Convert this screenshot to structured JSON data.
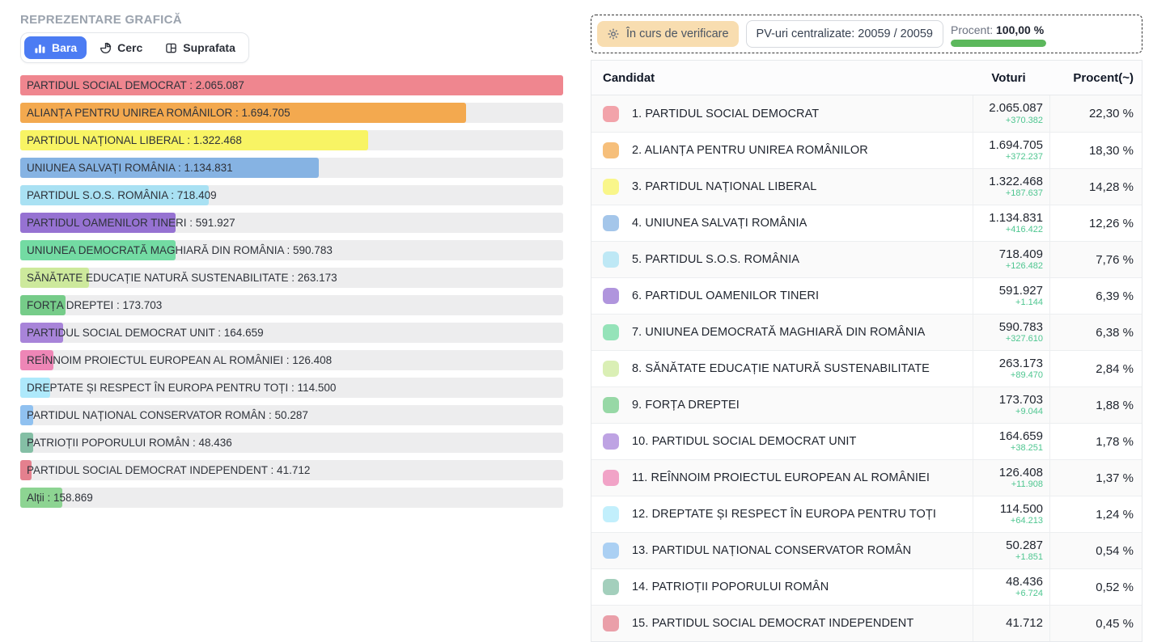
{
  "left_panel": {
    "title": "REPREZENTARE GRAFICĂ",
    "tabs": [
      {
        "label": "Bara",
        "icon": "bar-chart-icon",
        "active": true
      },
      {
        "label": "Cerc",
        "icon": "pie-chart-icon",
        "active": false
      },
      {
        "label": "Suprafata",
        "icon": "treemap-icon",
        "active": false
      }
    ]
  },
  "status_bar": {
    "badge": {
      "label": "În curs de verificare",
      "icon": "gear-icon",
      "bg": "#f8ddb0"
    },
    "pv_label": "PV-uri centralizate: 20059 / 20059",
    "progress": {
      "label": "Procent:",
      "value": "100,00 %",
      "percent": 100,
      "color": "#5cb85c"
    }
  },
  "table": {
    "columns": [
      "Candidat",
      "Voturi",
      "Procent(~)"
    ]
  },
  "parties": [
    {
      "name": "PARTIDUL SOCIAL DEMOCRAT",
      "color": "#ef868f",
      "votes": 2065087,
      "votes_display": "2.065.087",
      "delta": "+370.382",
      "percent": "22,30 %"
    },
    {
      "name": "ALIANȚA PENTRU UNIREA ROMÂNILOR",
      "color": "#f3a94f",
      "votes": 1694705,
      "votes_display": "1.694.705",
      "delta": "+372.237",
      "percent": "18,30 %"
    },
    {
      "name": "PARTIDUL NAȚIONAL LIBERAL",
      "color": "#f8f464",
      "votes": 1322468,
      "votes_display": "1.322.468",
      "delta": "+187.637",
      "percent": "14,28 %"
    },
    {
      "name": "UNIUNEA SALVAȚI ROMÂNIA",
      "color": "#86b3e3",
      "votes": 1134831,
      "votes_display": "1.134.831",
      "delta": "+416.422",
      "percent": "12,26 %"
    },
    {
      "name": "PARTIDUL S.O.S. ROMÂNIA",
      "color": "#a9e1f3",
      "votes": 718409,
      "votes_display": "718.409",
      "delta": "+126.482",
      "percent": "7,76 %"
    },
    {
      "name": "PARTIDUL OAMENILOR TINERI",
      "color": "#9672d2",
      "votes": 591927,
      "votes_display": "591.927",
      "delta": "+1.144",
      "percent": "6,39 %"
    },
    {
      "name": "UNIUNEA DEMOCRATĂ MAGHIARĂ DIN ROMÂNIA",
      "color": "#73dba3",
      "votes": 590783,
      "votes_display": "590.783",
      "delta": "+327.610",
      "percent": "6,38 %"
    },
    {
      "name": "SĂNĂTATE EDUCAȚIE NATURĂ SUSTENABILITATE",
      "color": "#cde99c",
      "votes": 263173,
      "votes_display": "263.173",
      "delta": "+89.470",
      "percent": "2,84 %"
    },
    {
      "name": "FORȚA DREPTEI",
      "color": "#76cc89",
      "votes": 173703,
      "votes_display": "173.703",
      "delta": "+9.044",
      "percent": "1,88 %"
    },
    {
      "name": "PARTIDUL SOCIAL DEMOCRAT UNIT",
      "color": "#a884d9",
      "votes": 164659,
      "votes_display": "164.659",
      "delta": "+38.251",
      "percent": "1,78 %"
    },
    {
      "name": "REÎNNOIM PROIECTUL EUROPEAN AL ROMÂNIEI",
      "color": "#ee86b6",
      "votes": 126408,
      "votes_display": "126.408",
      "delta": "+11.908",
      "percent": "1,37 %"
    },
    {
      "name": "DREPTATE ȘI RESPECT ÎN EUROPA PENTRU TOȚI",
      "color": "#aee9fb",
      "votes": 114500,
      "votes_display": "114.500",
      "delta": "+64.213",
      "percent": "1,24 %"
    },
    {
      "name": "PARTIDUL NAȚIONAL CONSERVATOR ROMÂN",
      "color": "#90c1f0",
      "votes": 50287,
      "votes_display": "50.287",
      "delta": "+1.851",
      "percent": "0,54 %"
    },
    {
      "name": "PATRIOȚII POPORULUI ROMÂN",
      "color": "#84bfa5",
      "votes": 48436,
      "votes_display": "48.436",
      "delta": "+6.724",
      "percent": "0,52 %"
    },
    {
      "name": "PARTIDUL SOCIAL DEMOCRAT INDEPENDENT",
      "color": "#e4808e",
      "votes": 41712,
      "votes_display": "41.712",
      "delta": null,
      "percent": "0,45 %"
    }
  ],
  "others": {
    "name": "Alții",
    "color": "#8dd492",
    "votes": 158869,
    "votes_display": "158.869"
  },
  "chart_data": {
    "type": "bar",
    "orientation": "horizontal",
    "title": "REPREZENTARE GRAFICĂ",
    "categories": [
      "PARTIDUL SOCIAL DEMOCRAT",
      "ALIANȚA PENTRU UNIREA ROMÂNILOR",
      "PARTIDUL NAȚIONAL LIBERAL",
      "UNIUNEA SALVAȚI ROMÂNIA",
      "PARTIDUL S.O.S. ROMÂNIA",
      "PARTIDUL OAMENILOR TINERI",
      "UNIUNEA DEMOCRATĂ MAGHIARĂ DIN ROMÂNIA",
      "SĂNĂTATE EDUCAȚIE NATURĂ SUSTENABILITATE",
      "FORȚA DREPTEI",
      "PARTIDUL SOCIAL DEMOCRAT UNIT",
      "REÎNNOIM PROIECTUL EUROPEAN AL ROMÂNIEI",
      "DREPTATE ȘI RESPECT ÎN EUROPA PENTRU TOȚI",
      "PARTIDUL NAȚIONAL CONSERVATOR ROMÂN",
      "PATRIOȚII POPORULUI ROMÂN",
      "PARTIDUL SOCIAL DEMOCRAT INDEPENDENT",
      "Alții"
    ],
    "values": [
      2065087,
      1694705,
      1322468,
      1134831,
      718409,
      591927,
      590783,
      263173,
      173703,
      164659,
      126408,
      114500,
      50287,
      48436,
      41712,
      158869
    ],
    "xlim": [
      0,
      2065087
    ],
    "grid": false,
    "legend": false
  }
}
